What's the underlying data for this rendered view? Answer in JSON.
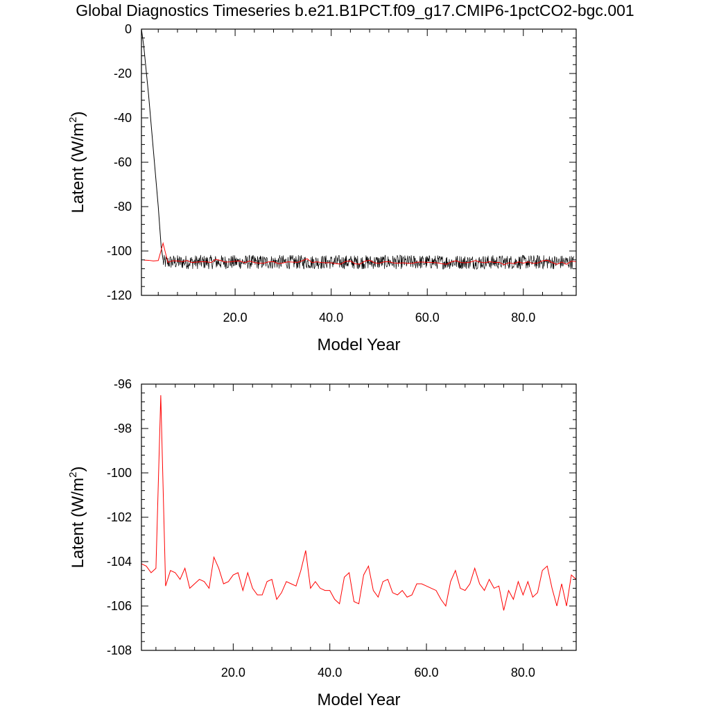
{
  "title": "Global Diagnostics Timeseries b.e21.B1PCT.f09_g17.CMIP6-1pctCO2-bgc.001",
  "colors": {
    "monthly": "#000000",
    "annual": "#ff0000",
    "axis": "#000000"
  },
  "chart_data": [
    {
      "type": "line",
      "xlabel": "Model Year",
      "ylabel": "Latent (W/m",
      "ylabel_sup": "2",
      "ylabel_close": ")",
      "xlim": [
        0.5,
        91
      ],
      "ylim": [
        -120,
        0
      ],
      "xticks": [
        20,
        40,
        60,
        80
      ],
      "xtick_labels": [
        "20.0",
        "40.0",
        "60.0",
        "80.0"
      ],
      "yticks": [
        0,
        -20,
        -40,
        -60,
        -80,
        -100,
        -120
      ],
      "ytick_labels": [
        "0",
        "-20",
        "-40",
        "-60",
        "-80",
        "-100",
        "-120"
      ],
      "series": [
        {
          "type": "monthly_start",
          "x": [
            0.5,
            1.0,
            2.0,
            3.0,
            4.0,
            4.6,
            5.0
          ],
          "values": [
            0,
            -8,
            -30,
            -55,
            -80,
            -98,
            -104
          ]
        },
        {
          "type": "monthly_noise",
          "x_start": 5.0,
          "x_end": 90.5,
          "mean": -105.0,
          "amplitude": 3.2
        },
        {
          "type": "annual_ref"
        }
      ]
    },
    {
      "type": "line",
      "xlabel": "Model Year",
      "ylabel": "Latent (W/m",
      "ylabel_sup": "2",
      "ylabel_close": ")",
      "xlim": [
        1,
        91
      ],
      "ylim": [
        -108,
        -96
      ],
      "xticks": [
        20,
        40,
        60,
        80
      ],
      "xtick_labels": [
        "20.0",
        "40.0",
        "60.0",
        "80.0"
      ],
      "yticks": [
        -96,
        -98,
        -100,
        -102,
        -104,
        -106,
        -108
      ],
      "ytick_labels": [
        "-96",
        "-98",
        "-100",
        "-102",
        "-104",
        "-106",
        "-108"
      ],
      "series": [
        {
          "type": "annual",
          "x": [
            1,
            2,
            3,
            4,
            5,
            6,
            7,
            8,
            9,
            10,
            11,
            12,
            13,
            14,
            15,
            16,
            17,
            18,
            19,
            20,
            21,
            22,
            23,
            24,
            25,
            26,
            27,
            28,
            29,
            30,
            31,
            32,
            33,
            34,
            35,
            36,
            37,
            38,
            39,
            40,
            41,
            42,
            43,
            44,
            45,
            46,
            47,
            48,
            49,
            50,
            51,
            52,
            53,
            54,
            55,
            56,
            57,
            58,
            59,
            60,
            61,
            62,
            63,
            64,
            65,
            66,
            67,
            68,
            69,
            70,
            71,
            72,
            73,
            74,
            75,
            76,
            77,
            78,
            79,
            80,
            81,
            82,
            83,
            84,
            85,
            86,
            87,
            88,
            89,
            90,
            91
          ],
          "values": [
            -104.1,
            -104.2,
            -104.5,
            -104.3,
            -96.5,
            -105.1,
            -104.4,
            -104.5,
            -104.8,
            -104.3,
            -105.2,
            -105.0,
            -104.8,
            -104.9,
            -105.2,
            -103.8,
            -104.3,
            -105.0,
            -104.9,
            -104.6,
            -104.5,
            -105.3,
            -104.5,
            -105.2,
            -105.5,
            -105.5,
            -104.9,
            -104.8,
            -105.7,
            -105.4,
            -104.9,
            -105.0,
            -105.1,
            -104.4,
            -103.5,
            -105.2,
            -104.9,
            -105.2,
            -105.3,
            -105.3,
            -105.7,
            -105.9,
            -104.7,
            -104.5,
            -105.8,
            -105.9,
            -104.6,
            -104.2,
            -105.3,
            -105.6,
            -104.9,
            -104.8,
            -105.4,
            -105.5,
            -105.3,
            -105.6,
            -105.5,
            -105.0,
            -105.0,
            -105.1,
            -105.2,
            -105.3,
            -105.7,
            -106.0,
            -104.9,
            -104.4,
            -105.2,
            -105.3,
            -105.0,
            -104.3,
            -105.0,
            -105.3,
            -104.8,
            -105.2,
            -105.1,
            -106.2,
            -105.3,
            -105.7,
            -104.9,
            -105.5,
            -104.9,
            -105.6,
            -105.4,
            -104.4,
            -104.2,
            -105.2,
            -106.0,
            -105.0,
            -106.0,
            -104.6,
            -104.8
          ]
        }
      ]
    }
  ]
}
